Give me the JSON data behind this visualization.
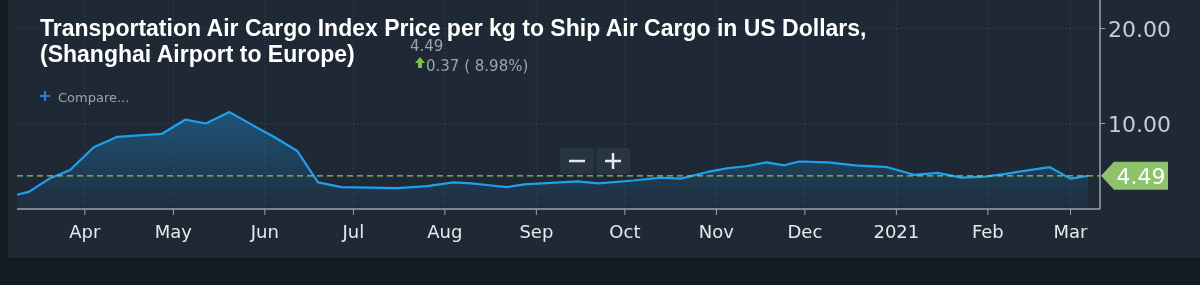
{
  "chart_data": {
    "type": "area",
    "title": "Transportation Air Cargo Index Price per kg to Ship Air Cargo in US Dollars,\n(Shanghai Airport to Europe)",
    "annotations": [
      "4.49",
      "0.37 ( 8.98%)",
      "Compare..."
    ],
    "x": [
      "2020-03-09",
      "2020-03-13",
      "2020-03-20",
      "2020-03-27",
      "2020-04-04",
      "2020-04-12",
      "2020-04-27",
      "2020-05-05",
      "2020-05-12",
      "2020-05-20",
      "2020-05-28",
      "2020-06-04",
      "2020-06-12",
      "2020-06-19",
      "2020-06-27",
      "2020-07-16",
      "2020-07-26",
      "2020-08-04",
      "2020-08-10",
      "2020-08-16",
      "2020-08-22",
      "2020-08-28",
      "2020-09-15",
      "2020-09-22",
      "2020-10-04",
      "2020-10-13",
      "2020-10-20",
      "2020-10-29",
      "2020-11-05",
      "2020-11-11",
      "2020-11-18",
      "2020-11-24",
      "2020-11-29",
      "2020-12-09",
      "2020-12-18",
      "2020-12-29",
      "2021-01-07",
      "2021-01-15",
      "2021-01-23",
      "2021-01-31",
      "2021-02-07",
      "2021-02-15",
      "2021-02-22",
      "2021-03-01",
      "2021-03-07"
    ],
    "series": [
      {
        "color": "#1ea0f0",
        "values": [
          2.5,
          2.8,
          4.2,
          5.1,
          7.5,
          8.6,
          8.9,
          10.4,
          10.0,
          11.2,
          9.8,
          8.6,
          7.1,
          3.8,
          3.3,
          3.2,
          3.4,
          3.8,
          3.7,
          3.5,
          3.3,
          3.6,
          3.9,
          3.7,
          4.0,
          4.3,
          4.2,
          4.9,
          5.3,
          5.5,
          5.9,
          5.6,
          6.0,
          5.9,
          5.6,
          5.4,
          4.6,
          4.8,
          4.3,
          4.4,
          4.7,
          5.1,
          5.4,
          4.2,
          4.49
        ]
      }
    ],
    "xlim": [
      "2020-03-09",
      "2021-03-11"
    ],
    "xticks": [
      {
        "value": "2020-04-01",
        "label": "Apr"
      },
      {
        "value": "2020-05-01",
        "label": "May"
      },
      {
        "value": "2020-06-01",
        "label": "Jun"
      },
      {
        "value": "2020-07-01",
        "label": "Jul"
      },
      {
        "value": "2020-08-01",
        "label": "Aug"
      },
      {
        "value": "2020-09-01",
        "label": "Sep"
      },
      {
        "value": "2020-10-01",
        "label": "Oct"
      },
      {
        "value": "2020-11-01",
        "label": "Nov"
      },
      {
        "value": "2020-12-01",
        "label": "Dec"
      },
      {
        "value": "2021-01-01",
        "label": "2021"
      },
      {
        "value": "2021-02-01",
        "label": "Feb"
      },
      {
        "value": "2021-03-01",
        "label": "Mar"
      }
    ],
    "ylim": [
      1,
      23
    ],
    "yticks": [
      {
        "value": 10,
        "label": "10.00"
      },
      {
        "value": 20,
        "label": "20.00"
      }
    ],
    "ref_lines": [
      {
        "axis": "y",
        "value": 4.49,
        "label": "4.49",
        "color": "#8fc36b",
        "line_style": "dashed"
      }
    ],
    "grid": true
  }
}
